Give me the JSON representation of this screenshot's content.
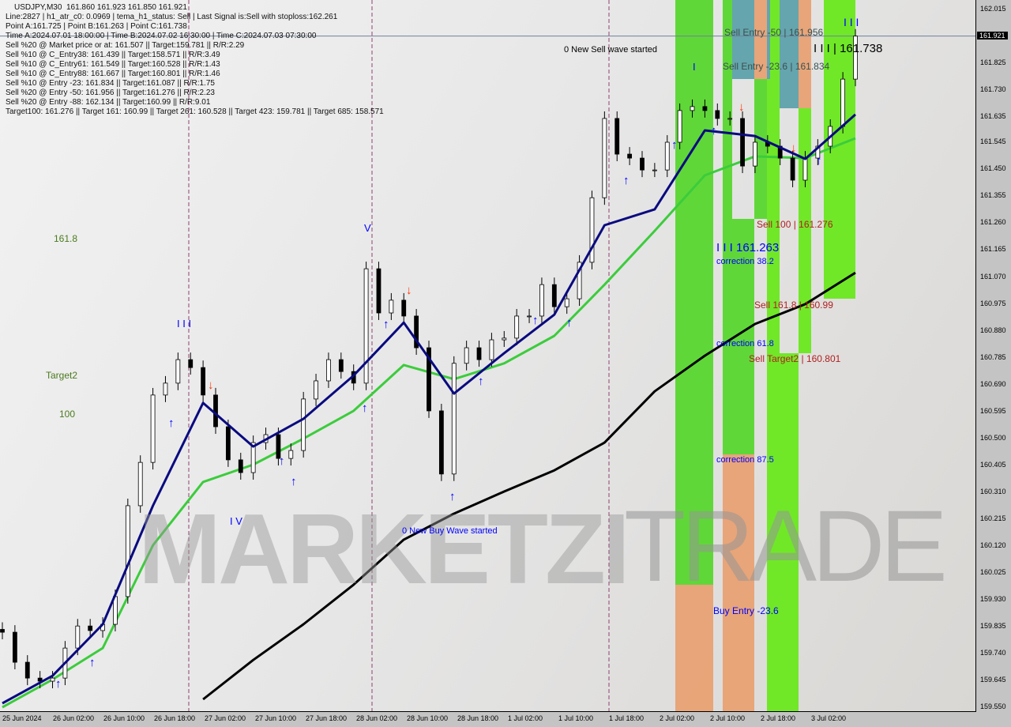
{
  "header": {
    "title": "USDJPY,M30  161.860 161.923 161.850 161.921",
    "lines": [
      "Line:2827 | h1_atr_c0: 0.0969 | tema_h1_status: Sell | Last Signal is:Sell with stoploss:162.261",
      "Point A:161.725 | Point B:161.263 | Point C:161.738",
      "Time A:2024.07.01 18:00:00 | Time B:2024.07.02 16:30:00 | Time C:2024.07.03 07:30:00",
      "Sell %20 @ Market price or at: 161.507 || Target:159.781 || R/R:2.29",
      "Sell %10 @ C_Entry38: 161.439 || Target:158.571 || R/R:3.49",
      "Sell %10 @ C_Entry61: 161.549 || Target:160.528 || R/R:1.43",
      "Sell %10 @ C_Entry88: 161.667 || Target:160.801 || R/R:1.46",
      "Sell %10 @ Entry -23: 161.834 || Target:161.087 || R/R:1.75",
      "Sell %20 @ Entry -50: 161.956 || Target:161.276 || R/R:2.23",
      "Sell %20 @ Entry -88: 162.134 || Target:160.99 || R/R:9.01",
      "Target100: 161.276 || Target 161: 160.99 || Target 261: 160.528 || Target 423: 159.781 || Target 685: 158.571"
    ]
  },
  "labels": {
    "fib_1618": "161.8",
    "target2": "Target2",
    "fib_100": "100",
    "sell_wave": "0 New Sell wave started",
    "buy_wave": "0 New Buy Wave started",
    "wave_iii_1": "I I I",
    "wave_v": "V",
    "wave_iv": "I V",
    "wave_i": "I",
    "wave_iii_2": "I I I",
    "point_b": "I I I 161.263",
    "point_c": "I I I | 161.738",
    "sell_entry_50": "Sell Entry -50 | 161.956",
    "sell_entry_236": "Sell Entry -23.6 | 161.834",
    "sell_100": "Sell 100 | 161.276",
    "corr_382": "correction 38.2",
    "sell_1618": "Sell 161.8 | 160.99",
    "corr_618": "correction 61.8",
    "sell_target2": "Sell Target2 | 160.801",
    "corr_875": "correction 87.5",
    "buy_entry": "Buy Entry -23.6",
    "watermark_a": "MARKETZI",
    "watermark_b": "TRADE"
  },
  "colors": {
    "zone_green": "#55d62a",
    "zone_lime": "#66e818",
    "zone_orange": "#e8a070",
    "zone_teal": "#5aa0a8",
    "ma_fast": "#0a0a80",
    "ma_mid": "#3ccc3c",
    "ma_slow": "#000000",
    "up_arrow": "#0000ff",
    "down_arrow": "#ff3300",
    "current_price_line": "#7080a0"
  },
  "chart_data": {
    "type": "candlestick",
    "symbol": "USDJPY",
    "timeframe": "M30",
    "ylim": [
      159.55,
      162.015
    ],
    "current_price": 161.921,
    "y_ticks": [
      "162.015",
      "161.921",
      "161.825",
      "161.730",
      "161.635",
      "161.545",
      "161.450",
      "161.355",
      "161.260",
      "161.165",
      "161.070",
      "160.975",
      "160.880",
      "160.785",
      "160.690",
      "160.595",
      "160.500",
      "160.405",
      "160.310",
      "160.215",
      "160.120",
      "160.025",
      "159.930",
      "159.835",
      "159.740",
      "159.645",
      "159.550"
    ],
    "x_ticks": [
      "25 Jun 2024",
      "26 Jun 02:00",
      "26 Jun 10:00",
      "26 Jun 18:00",
      "27 Jun 02:00",
      "27 Jun 10:00",
      "27 Jun 18:00",
      "28 Jun 02:00",
      "28 Jun 10:00",
      "28 Jun 18:00",
      "1 Jul 02:00",
      "1 Jul 10:00",
      "1 Jul 18:00",
      "2 Jul 02:00",
      "2 Jul 10:00",
      "2 Jul 18:00",
      "3 Jul 02:00"
    ],
    "close_prices": [
      159.815,
      159.709,
      159.653,
      159.642,
      159.653,
      159.759,
      159.837,
      159.821,
      159.843,
      159.941,
      160.262,
      160.415,
      160.653,
      160.695,
      160.778,
      160.75,
      160.653,
      160.541,
      160.424,
      160.379,
      160.485,
      160.513,
      160.429,
      160.457,
      160.639,
      160.703,
      160.778,
      160.736,
      160.695,
      161.099,
      160.943,
      160.988,
      160.932,
      160.82,
      160.597,
      160.374,
      160.765,
      160.82,
      160.778,
      160.848,
      160.854,
      160.932,
      160.932,
      161.043,
      160.965,
      160.993,
      161.122,
      161.35,
      161.63,
      161.504,
      161.49,
      161.448,
      161.448,
      161.546,
      161.658,
      161.672,
      161.658,
      161.63,
      161.63,
      161.462,
      161.546,
      161.532,
      161.49,
      161.412,
      161.49,
      161.532,
      161.602,
      161.769,
      161.921
    ],
    "ma_fast": [
      159.564,
      159.661,
      159.843,
      160.262,
      160.625,
      160.471,
      160.569,
      160.722,
      160.909,
      160.658,
      160.801,
      160.937,
      161.253,
      161.309,
      161.588,
      161.568,
      161.487,
      161.644
    ],
    "ma_mid": [
      159.55,
      159.648,
      159.759,
      160.122,
      160.346,
      160.407,
      160.499,
      160.597,
      160.759,
      160.709,
      160.765,
      160.862,
      161.043,
      161.233,
      161.429,
      161.496,
      161.49,
      161.56
    ],
    "ma_slow": [
      null,
      null,
      null,
      null,
      159.578,
      159.717,
      159.843,
      159.983,
      160.142,
      160.234,
      160.312,
      160.387,
      160.485,
      160.666,
      160.792,
      160.904,
      160.974,
      161.085
    ],
    "grid": false
  }
}
